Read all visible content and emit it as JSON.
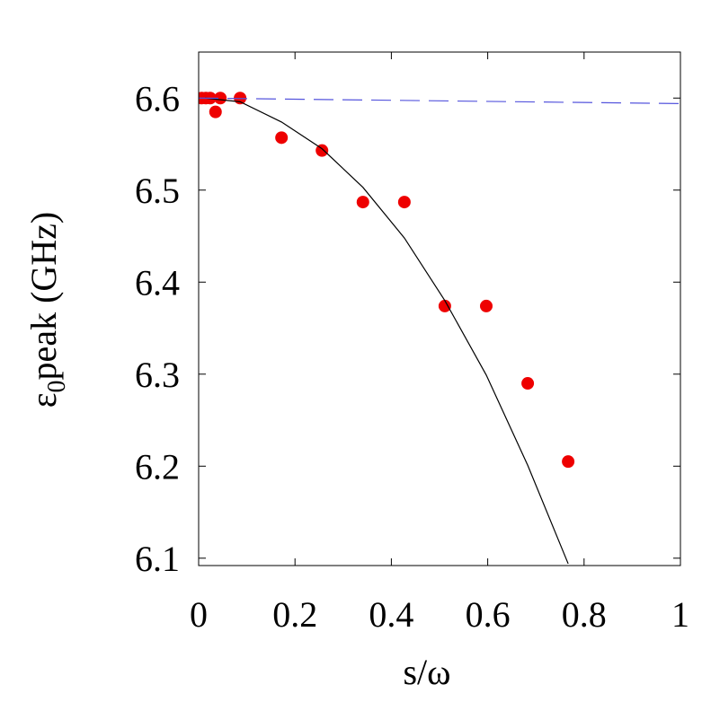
{
  "chart_data": {
    "type": "scatter",
    "xlabel": "s/ω",
    "ylabel": {
      "main": "ε",
      "sub": "0",
      "rest": "peak (GHz)"
    },
    "xlim": [
      0,
      1
    ],
    "xticks": [
      0,
      0.2,
      0.4,
      0.6,
      0.8,
      1
    ],
    "ylim": [
      6.092,
      6.65
    ],
    "yticks": [
      6.1,
      6.2,
      6.3,
      6.4,
      6.5,
      6.6
    ],
    "series": [
      {
        "mode": "markers",
        "color": "#ee0000",
        "x": [
          0.006,
          0.015,
          0.024,
          0.035,
          0.045,
          0.086,
          0.172,
          0.256,
          0.341,
          0.427,
          0.511,
          0.597,
          0.683,
          0.767
        ],
        "values": [
          6.6,
          6.6,
          6.6,
          6.585,
          6.6,
          6.6,
          6.557,
          6.543,
          6.487,
          6.487,
          6.374,
          6.374,
          6.29,
          6.205
        ]
      },
      {
        "mode": "line",
        "color": "#000000",
        "x": [
          0.013,
          0.086,
          0.172,
          0.256,
          0.341,
          0.427,
          0.511,
          0.597,
          0.683,
          0.767
        ],
        "values": [
          6.6,
          6.596,
          6.574,
          6.545,
          6.503,
          6.448,
          6.38,
          6.299,
          6.201,
          6.094
        ]
      },
      {
        "mode": "dashed",
        "color": "#5555dd",
        "x": [
          0,
          1
        ],
        "values": [
          6.6,
          6.594
        ]
      }
    ]
  }
}
